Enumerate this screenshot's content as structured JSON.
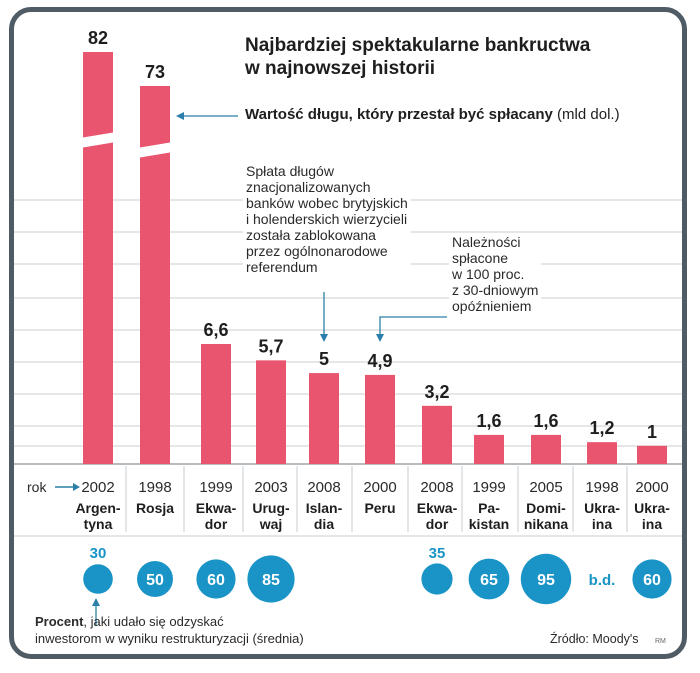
{
  "title_line1": "Najbardziej spektakularne bankructwa",
  "title_line2": "w najnowszej historii",
  "legend": {
    "bold": "Wartość długu, który przestał być spłacany",
    "unit": "(mld dol.)"
  },
  "note_iceland": [
    "Spłata długów",
    "znacjonalizowanych",
    "banków wobec brytyjskich",
    "i holenderskich wierzycieli",
    "została zablokowana",
    "przez ogólnonarodowe",
    "referendum"
  ],
  "note_peru": [
    "Należności",
    "spłacone",
    "w 100 proc.",
    "z 30-dniowym",
    "opóźnieniem"
  ],
  "year_axis_label": "rok",
  "footer": {
    "bold": "Procent",
    "rest1": ", jaki udało się odzyskać",
    "line2": "inwestorom w wyniku restrukturyzacji (średnia)"
  },
  "source": "Źródło: Moody's",
  "initials": "RM",
  "colors": {
    "bar": "#e9546e",
    "bubble": "#1a94c6",
    "frame": "#4f5b65",
    "bubble_label": "#1a94c6"
  },
  "chart_data": {
    "type": "bar",
    "title": "Najbardziej spektakularne bankructwa w najnowszej historii",
    "ylabel": "Wartość długu, który przestał być spłacany (mld dol.)",
    "categories": [
      {
        "year": "2002",
        "country": [
          "Argen-",
          "tyna"
        ]
      },
      {
        "year": "1998",
        "country": [
          "Rosja"
        ]
      },
      {
        "year": "1999",
        "country": [
          "Ekwa-",
          "dor"
        ]
      },
      {
        "year": "2003",
        "country": [
          "Urug-",
          "waj"
        ]
      },
      {
        "year": "2008",
        "country": [
          "Islan-",
          "dia"
        ]
      },
      {
        "year": "2000",
        "country": [
          "Peru"
        ]
      },
      {
        "year": "2008",
        "country": [
          "Ekwa-",
          "dor"
        ]
      },
      {
        "year": "1999",
        "country": [
          "Pa-",
          "kistan"
        ]
      },
      {
        "year": "2005",
        "country": [
          "Domi-",
          "nikana"
        ]
      },
      {
        "year": "1998",
        "country": [
          "Ukra-",
          "ina"
        ]
      },
      {
        "year": "2000",
        "country": [
          "Ukra-",
          "ina"
        ]
      }
    ],
    "values": [
      82,
      73,
      6.6,
      5.7,
      5,
      4.9,
      3.2,
      1.6,
      1.6,
      1.2,
      1
    ],
    "value_labels": [
      "82",
      "73",
      "6,6",
      "5,7",
      "5",
      "4,9",
      "3,2",
      "1,6",
      "1,6",
      "1,2",
      "1"
    ],
    "axis_break": true,
    "recovery_percent": [
      30,
      50,
      60,
      85,
      null,
      null,
      35,
      65,
      95,
      "b.d.",
      60
    ],
    "recovery_labels": [
      "30",
      "50",
      "60",
      "85",
      "",
      "",
      "35",
      "65",
      "95",
      "b.d.",
      "60"
    ],
    "grid": true
  }
}
